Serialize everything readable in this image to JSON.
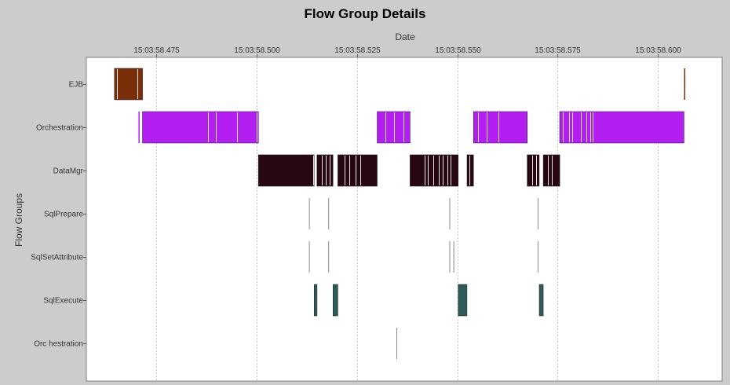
{
  "chart_data": {
    "type": "gantt",
    "title": "Flow Group Details",
    "xlabel": "Date",
    "ylabel": "Flow Groups",
    "x_unit": "seconds (time of day 15:03:58.xxx)",
    "xlim": [
      58.4575,
      58.616
    ],
    "x_ticks": [
      {
        "value": 58.475,
        "label": "15:03:58.475"
      },
      {
        "value": 58.5,
        "label": "15:03:58.500"
      },
      {
        "value": 58.525,
        "label": "15:03:58.525"
      },
      {
        "value": 58.55,
        "label": "15:03:58.550"
      },
      {
        "value": 58.575,
        "label": "15:03:58.575"
      },
      {
        "value": 58.6,
        "label": "15:03:58.600"
      }
    ],
    "grid": true,
    "series": [
      {
        "name": "EJB",
        "color": "#7b2e0a",
        "intervals": [
          [
            58.4645,
            58.4715
          ],
          [
            58.6065,
            58.6068
          ]
        ],
        "dividers": [
          58.4652,
          58.4703
        ]
      },
      {
        "name": "Orchestration",
        "color": "#b21ff0",
        "intervals": [
          [
            58.4705,
            58.4708
          ],
          [
            58.4715,
            58.5004
          ],
          [
            58.53,
            58.5382
          ],
          [
            58.554,
            58.5674
          ],
          [
            58.5755,
            58.6065
          ]
        ],
        "dividers": [
          58.4878,
          58.4898,
          58.495,
          58.4999,
          58.5321,
          58.5343,
          58.5365,
          58.5552,
          58.5572,
          58.5603,
          58.5762,
          58.5779,
          58.5787,
          58.5808,
          58.5822,
          58.5832,
          58.5838
        ]
      },
      {
        "name": "DataMgr",
        "color": "#270711",
        "intervals": [
          [
            58.5004,
            58.5143
          ],
          [
            58.515,
            58.519
          ],
          [
            58.5202,
            58.53
          ],
          [
            58.5382,
            58.5502
          ],
          [
            58.5524,
            58.554
          ],
          [
            58.5674,
            58.5704
          ],
          [
            58.5714,
            58.5755
          ]
        ],
        "dividers": [
          58.5141,
          58.5163,
          58.5172,
          58.5181,
          58.5218,
          58.5231,
          58.5247,
          58.5258,
          58.5418,
          58.5426,
          58.544,
          58.5453,
          58.5463,
          58.5475,
          58.5482,
          58.553,
          58.5686,
          58.5697,
          58.5725,
          58.5736
        ]
      },
      {
        "name": "SqlPrepare",
        "color": "#888888",
        "intervals": [
          [
            58.513,
            58.5132
          ],
          [
            58.5178,
            58.518
          ],
          [
            58.548,
            58.5482
          ],
          [
            58.57,
            58.5702
          ]
        ],
        "dividers": []
      },
      {
        "name": "SqlSetAttribute",
        "color": "#888888",
        "intervals": [
          [
            58.513,
            58.5132
          ],
          [
            58.5178,
            58.518
          ],
          [
            58.548,
            58.5482
          ],
          [
            58.549,
            58.5492
          ],
          [
            58.57,
            58.5702
          ]
        ],
        "dividers": []
      },
      {
        "name": "SqlExecute",
        "color": "#2f5b5b",
        "intervals": [
          [
            58.5143,
            58.515
          ],
          [
            58.519,
            58.5202
          ],
          [
            58.5502,
            58.5524
          ],
          [
            58.5704,
            58.5714
          ]
        ],
        "dividers": []
      },
      {
        "name": "Orc hestration",
        "color": "#888888",
        "intervals": [
          [
            58.5348,
            58.535
          ]
        ],
        "dividers": []
      }
    ]
  }
}
